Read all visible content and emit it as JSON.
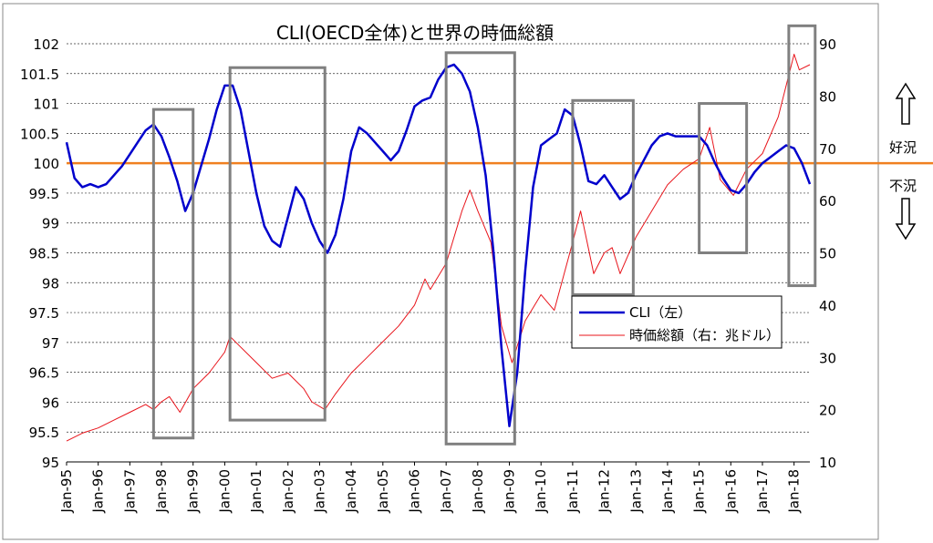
{
  "chart_data": {
    "type": "line",
    "title": "CLI(OECD全体)と世界の時価総額",
    "x_ticks": [
      "Jan-95",
      "Jan-96",
      "Jan-97",
      "Jan-98",
      "Jan-99",
      "Jan-00",
      "Jan-01",
      "Jan-02",
      "Jan-03",
      "Jan-04",
      "Jan-05",
      "Jan-06",
      "Jan-07",
      "Jan-08",
      "Jan-09",
      "Jan-10",
      "Jan-11",
      "Jan-12",
      "Jan-13",
      "Jan-14",
      "Jan-15",
      "Jan-16",
      "Jan-17",
      "Jan-18"
    ],
    "x_range": [
      "1995-01",
      "2018-07"
    ],
    "y_left": {
      "ylim": [
        95,
        102
      ],
      "ticks": [
        "95",
        "95.5",
        "96",
        "96.5",
        "97",
        "97.5",
        "98",
        "98.5",
        "99",
        "99.5",
        "100",
        "100.5",
        "101",
        "101.5",
        "102"
      ]
    },
    "y_right": {
      "ylim": [
        10,
        90
      ],
      "ticks": [
        "10",
        "20",
        "30",
        "40",
        "50",
        "60",
        "70",
        "80",
        "90"
      ]
    },
    "grid": "horizontal-dashed",
    "legend_position": "center-right",
    "series": [
      {
        "name": "CLI（左）",
        "axis": "left",
        "color": "#0000cc",
        "points": [
          [
            "1995-01",
            100.35
          ],
          [
            "1995-04",
            99.75
          ],
          [
            "1995-07",
            99.6
          ],
          [
            "1995-10",
            99.65
          ],
          [
            "1996-01",
            99.6
          ],
          [
            "1996-04",
            99.65
          ],
          [
            "1996-07",
            99.8
          ],
          [
            "1996-10",
            99.95
          ],
          [
            "1997-01",
            100.15
          ],
          [
            "1997-04",
            100.35
          ],
          [
            "1997-07",
            100.55
          ],
          [
            "1997-10",
            100.65
          ],
          [
            "1998-01",
            100.45
          ],
          [
            "1998-04",
            100.1
          ],
          [
            "1998-07",
            99.7
          ],
          [
            "1998-10",
            99.2
          ],
          [
            "1999-01",
            99.5
          ],
          [
            "1999-04",
            99.95
          ],
          [
            "1999-07",
            100.4
          ],
          [
            "1999-10",
            100.9
          ],
          [
            "2000-01",
            101.3
          ],
          [
            "2000-04",
            101.3
          ],
          [
            "2000-07",
            100.9
          ],
          [
            "2000-10",
            100.2
          ],
          [
            "2001-01",
            99.5
          ],
          [
            "2001-04",
            98.95
          ],
          [
            "2001-07",
            98.7
          ],
          [
            "2001-10",
            98.6
          ],
          [
            "2002-01",
            99.1
          ],
          [
            "2002-04",
            99.6
          ],
          [
            "2002-07",
            99.4
          ],
          [
            "2002-10",
            99.0
          ],
          [
            "2003-01",
            98.7
          ],
          [
            "2003-04",
            98.5
          ],
          [
            "2003-07",
            98.8
          ],
          [
            "2003-10",
            99.4
          ],
          [
            "2004-01",
            100.2
          ],
          [
            "2004-04",
            100.6
          ],
          [
            "2004-07",
            100.5
          ],
          [
            "2004-10",
            100.35
          ],
          [
            "2005-01",
            100.2
          ],
          [
            "2005-04",
            100.05
          ],
          [
            "2005-07",
            100.2
          ],
          [
            "2005-10",
            100.55
          ],
          [
            "2006-01",
            100.95
          ],
          [
            "2006-04",
            101.05
          ],
          [
            "2006-07",
            101.1
          ],
          [
            "2006-10",
            101.4
          ],
          [
            "2007-01",
            101.6
          ],
          [
            "2007-04",
            101.65
          ],
          [
            "2007-07",
            101.5
          ],
          [
            "2007-10",
            101.2
          ],
          [
            "2008-01",
            100.6
          ],
          [
            "2008-04",
            99.8
          ],
          [
            "2008-07",
            98.5
          ],
          [
            "2008-10",
            96.9
          ],
          [
            "2009-01",
            95.6
          ],
          [
            "2009-04",
            96.5
          ],
          [
            "2009-07",
            98.2
          ],
          [
            "2009-10",
            99.6
          ],
          [
            "2010-01",
            100.3
          ],
          [
            "2010-04",
            100.4
          ],
          [
            "2010-07",
            100.5
          ],
          [
            "2010-10",
            100.9
          ],
          [
            "2011-01",
            100.8
          ],
          [
            "2011-04",
            100.3
          ],
          [
            "2011-07",
            99.7
          ],
          [
            "2011-10",
            99.65
          ],
          [
            "2012-01",
            99.8
          ],
          [
            "2012-04",
            99.6
          ],
          [
            "2012-07",
            99.4
          ],
          [
            "2012-10",
            99.5
          ],
          [
            "2013-01",
            99.8
          ],
          [
            "2013-04",
            100.05
          ],
          [
            "2013-07",
            100.3
          ],
          [
            "2013-10",
            100.45
          ],
          [
            "2014-01",
            100.5
          ],
          [
            "2014-04",
            100.45
          ],
          [
            "2014-07",
            100.45
          ],
          [
            "2014-10",
            100.45
          ],
          [
            "2015-01",
            100.45
          ],
          [
            "2015-04",
            100.3
          ],
          [
            "2015-07",
            100.0
          ],
          [
            "2015-10",
            99.75
          ],
          [
            "2016-01",
            99.55
          ],
          [
            "2016-04",
            99.5
          ],
          [
            "2016-07",
            99.65
          ],
          [
            "2016-10",
            99.85
          ],
          [
            "2017-01",
            100.0
          ],
          [
            "2017-04",
            100.1
          ],
          [
            "2017-07",
            100.2
          ],
          [
            "2017-10",
            100.3
          ],
          [
            "2018-01",
            100.25
          ],
          [
            "2018-04",
            100.0
          ],
          [
            "2018-07",
            99.65
          ]
        ]
      },
      {
        "name": "時価総額（右：兆ドル）",
        "axis": "right",
        "color": "#e8141b",
        "points": [
          [
            "1995-01",
            14
          ],
          [
            "1995-07",
            15.5
          ],
          [
            "1996-01",
            16.5
          ],
          [
            "1996-07",
            18
          ],
          [
            "1997-01",
            19.5
          ],
          [
            "1997-07",
            21
          ],
          [
            "1997-10",
            20
          ],
          [
            "1998-01",
            21.5
          ],
          [
            "1998-04",
            22.5
          ],
          [
            "1998-08",
            19.5
          ],
          [
            "1999-01",
            24
          ],
          [
            "1999-07",
            27
          ],
          [
            "2000-01",
            31
          ],
          [
            "2000-03",
            34
          ],
          [
            "2000-07",
            32
          ],
          [
            "2001-01",
            29
          ],
          [
            "2001-07",
            26
          ],
          [
            "2002-01",
            27
          ],
          [
            "2002-07",
            24
          ],
          [
            "2002-10",
            21.5
          ],
          [
            "2003-03",
            20
          ],
          [
            "2003-07",
            23
          ],
          [
            "2004-01",
            27
          ],
          [
            "2004-07",
            30
          ],
          [
            "2005-01",
            33
          ],
          [
            "2005-07",
            36
          ],
          [
            "2006-01",
            40
          ],
          [
            "2006-05",
            45
          ],
          [
            "2006-07",
            43
          ],
          [
            "2007-01",
            48
          ],
          [
            "2007-07",
            58
          ],
          [
            "2007-10",
            62
          ],
          [
            "2008-01",
            58
          ],
          [
            "2008-06",
            52
          ],
          [
            "2008-10",
            36
          ],
          [
            "2009-02",
            29
          ],
          [
            "2009-07",
            37
          ],
          [
            "2010-01",
            42
          ],
          [
            "2010-06",
            39
          ],
          [
            "2011-01",
            52
          ],
          [
            "2011-04",
            58
          ],
          [
            "2011-09",
            46
          ],
          [
            "2012-01",
            50
          ],
          [
            "2012-04",
            51
          ],
          [
            "2012-07",
            46
          ],
          [
            "2013-01",
            53
          ],
          [
            "2013-07",
            58
          ],
          [
            "2014-01",
            63
          ],
          [
            "2014-07",
            66
          ],
          [
            "2015-01",
            68
          ],
          [
            "2015-05",
            74
          ],
          [
            "2015-09",
            64
          ],
          [
            "2016-02",
            61
          ],
          [
            "2016-07",
            66
          ],
          [
            "2017-01",
            69
          ],
          [
            "2017-07",
            76
          ],
          [
            "2018-01",
            88
          ],
          [
            "2018-03",
            85
          ],
          [
            "2018-07",
            86
          ]
        ]
      }
    ],
    "highlight_boxes": [
      {
        "from": "1997-10",
        "to": "1999-01",
        "y_left": [
          95.4,
          100.9
        ]
      },
      {
        "from": "2000-03",
        "to": "2003-03",
        "y_left": [
          95.7,
          101.6
        ]
      },
      {
        "from": "2007-01",
        "to": "2009-03",
        "y_left": [
          95.3,
          101.85
        ]
      },
      {
        "from": "2011-01",
        "to": "2012-12",
        "y_left": [
          97.8,
          101.05
        ]
      },
      {
        "from": "2015-01",
        "to": "2016-07",
        "y_left": [
          98.5,
          101.0
        ]
      },
      {
        "from": "2017-11",
        "to": "2018-09",
        "y_left": [
          97.95,
          102.3
        ]
      }
    ],
    "reference_line": {
      "axis": "left",
      "value": 100,
      "color": "#f08020"
    }
  },
  "side_labels": {
    "good": "好況",
    "bad": "不況"
  }
}
